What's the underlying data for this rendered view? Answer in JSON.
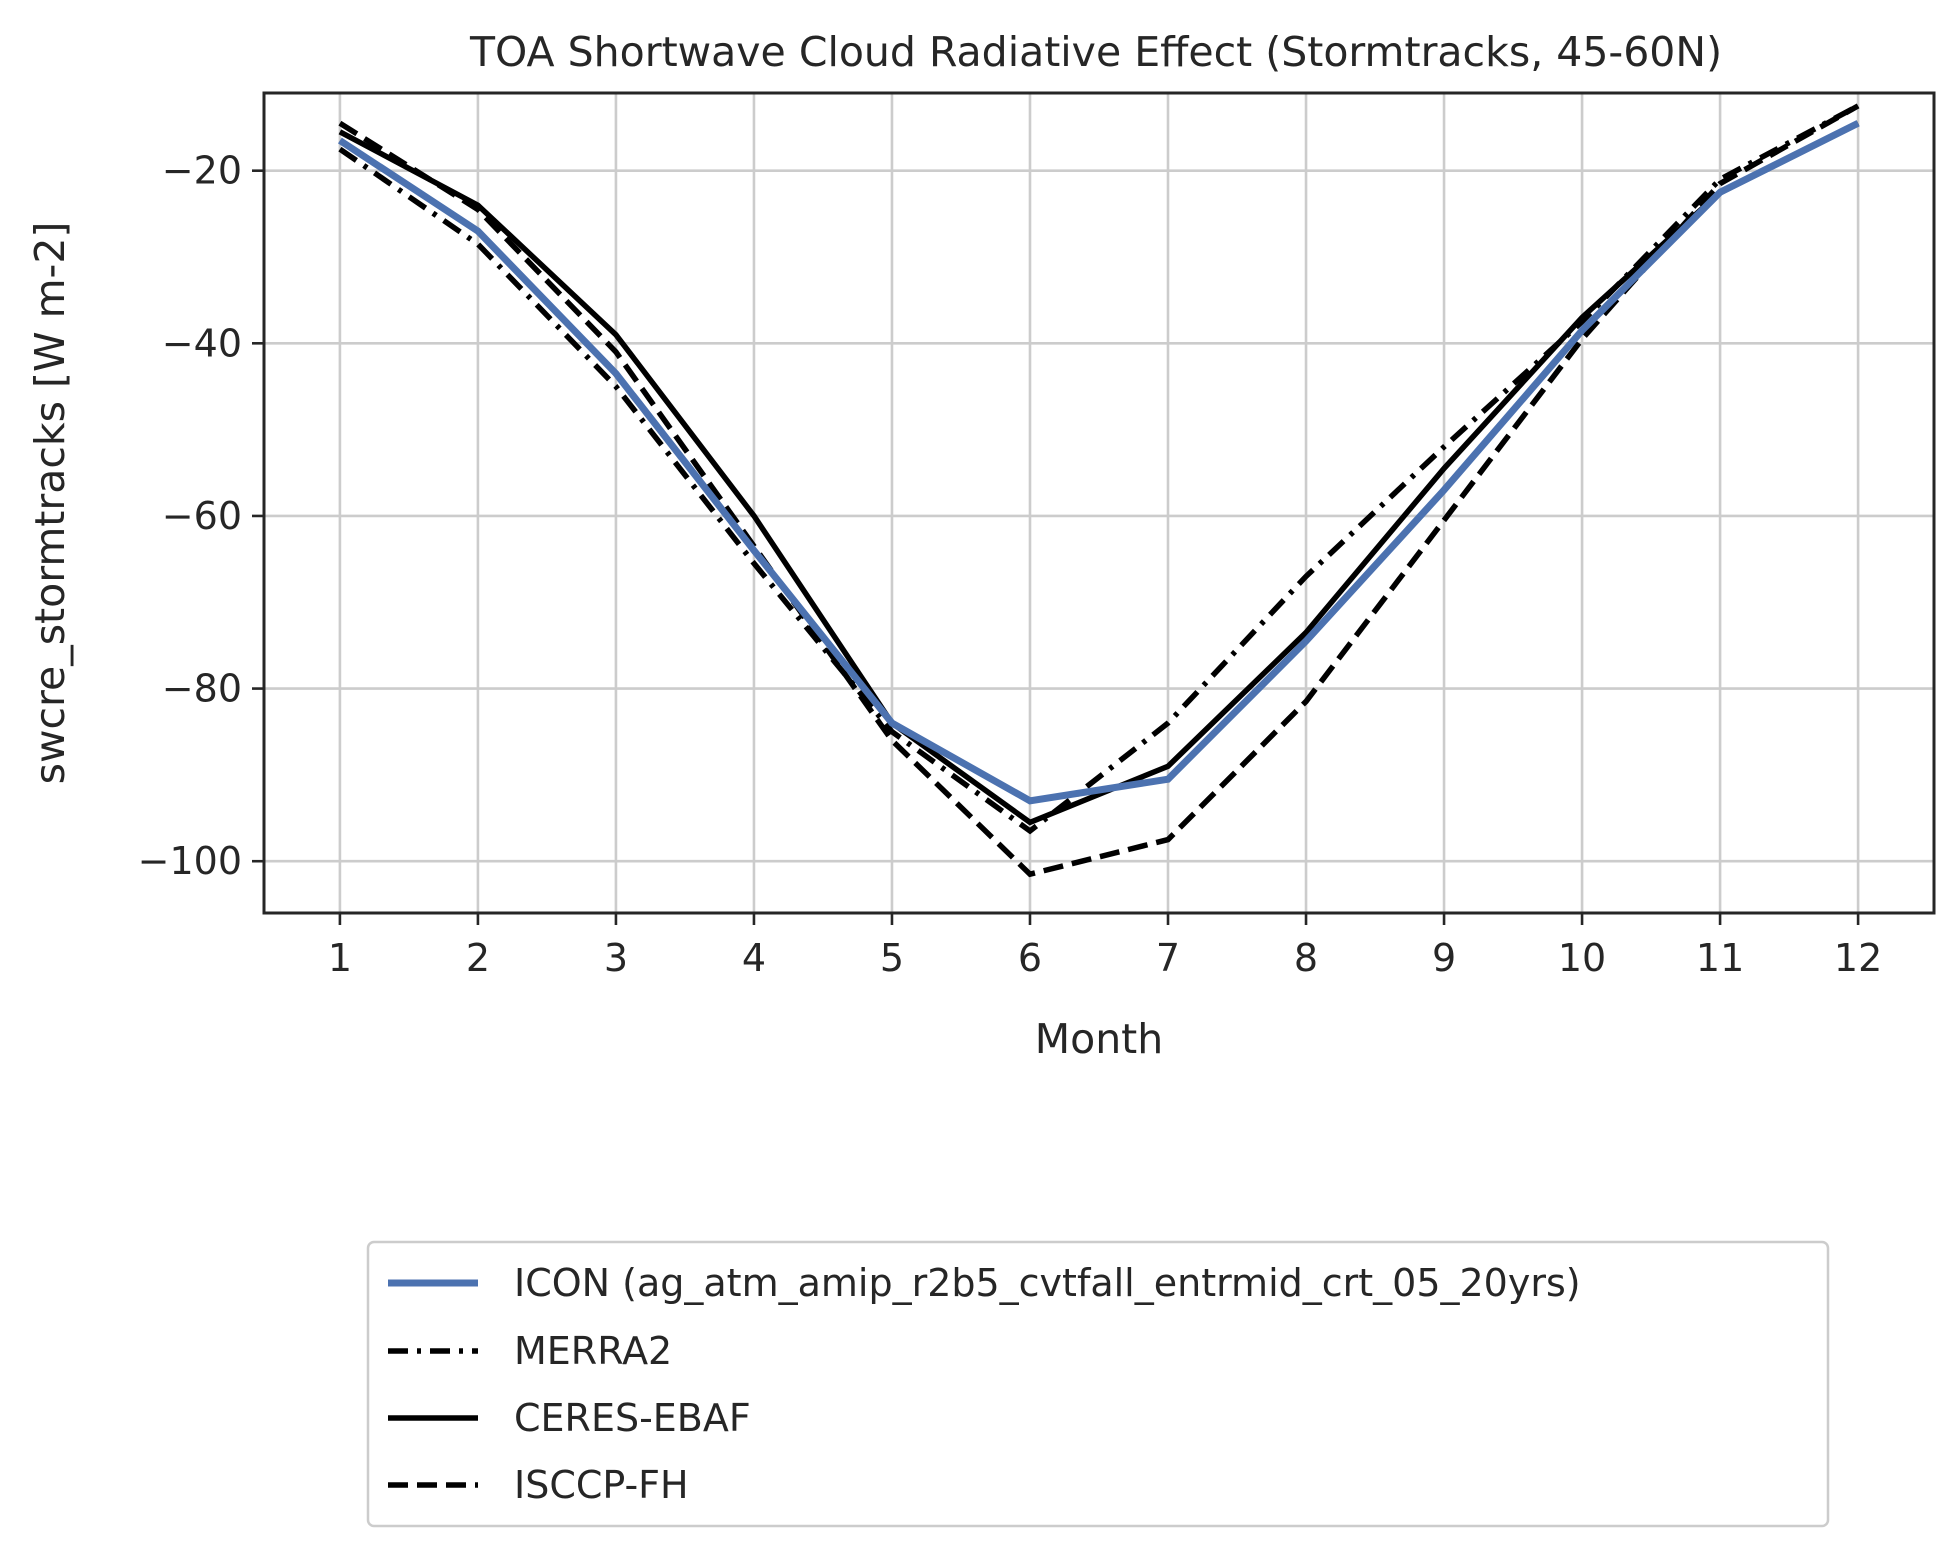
{
  "chart_data": {
    "type": "line",
    "title": "TOA Shortwave Cloud Radiative Effect (Stormtracks, 45-60N)",
    "xlabel": "Month",
    "ylabel": "swcre_stormtracks [W m-2]",
    "x": [
      1,
      2,
      3,
      4,
      5,
      6,
      7,
      8,
      9,
      10,
      11,
      12
    ],
    "xticks": [
      "1",
      "2",
      "3",
      "4",
      "5",
      "6",
      "7",
      "8",
      "9",
      "10",
      "11",
      "12"
    ],
    "yticks": [
      -20,
      -40,
      -60,
      -80,
      -100
    ],
    "ytick_labels": [
      "−20",
      "−40",
      "−60",
      "−80",
      "−100"
    ],
    "xlim": [
      0.45,
      12.55
    ],
    "ylim": [
      -106,
      -11
    ],
    "grid": true,
    "legend_position": "below-center",
    "series": [
      {
        "name": "ICON (ag_atm_amip_r2b5_cvtfall_entrmid_crt_05_20yrs)",
        "style": "solid",
        "color": "#4c72b0",
        "values": [
          -16.5,
          -27,
          -43.5,
          -64,
          -84,
          -93,
          -90.5,
          -74.5,
          -57,
          -38.5,
          -22.5,
          -14.5
        ]
      },
      {
        "name": "MERRA2",
        "style": "dashdot",
        "color": "#000000",
        "values": [
          -17.5,
          -28.5,
          -45,
          -65.5,
          -85,
          -96.5,
          -84,
          -67,
          -52,
          -37.5,
          -21,
          -12.5
        ]
      },
      {
        "name": "CERES-EBAF",
        "style": "solid",
        "color": "#000000",
        "values": [
          -15.5,
          -24,
          -39,
          -60,
          -84,
          -95.5,
          -89,
          -73.5,
          -54.5,
          -37,
          -22.5,
          -14.5
        ]
      },
      {
        "name": "ISCCP-FH",
        "style": "dashed",
        "color": "#000000",
        "values": [
          -14.5,
          -24.5,
          -41,
          -63.5,
          -86,
          -101.5,
          -97.5,
          -81.5,
          -60.5,
          -39.5,
          -21.5,
          -12.5
        ]
      }
    ]
  }
}
